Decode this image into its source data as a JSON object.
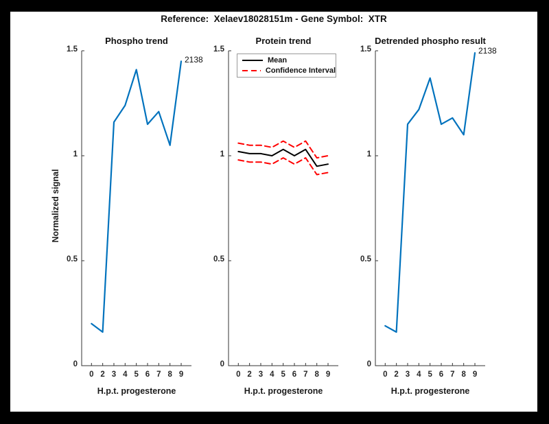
{
  "figure": {
    "title": "Reference:  Xelaev18028151m - Gene Symbol:  XTR"
  },
  "colors": {
    "line_blue": "#0072BD",
    "ci_red": "#FF0000",
    "mean_black": "#000000",
    "axis": "#333333"
  },
  "chart_data": [
    {
      "type": "line",
      "title": "Phospho trend",
      "xlabel": "H.p.t. progesterone",
      "ylabel": "Normalized signal",
      "categories": [
        "0",
        "2",
        "3",
        "4",
        "5",
        "6",
        "7",
        "8",
        "9"
      ],
      "ylim": [
        0,
        1.5
      ],
      "yticks": [
        "0",
        "0.5",
        "1",
        "1.5"
      ],
      "grid": false,
      "series": [
        {
          "name": "phospho-signal",
          "color": "#0072BD",
          "style": "solid",
          "values": [
            0.2,
            0.16,
            1.16,
            1.24,
            1.41,
            1.15,
            1.21,
            1.05,
            1.45
          ]
        }
      ],
      "annotation": {
        "text": "2138",
        "at_category": "9",
        "at_value": 1.45
      }
    },
    {
      "type": "line",
      "title": "Protein trend",
      "xlabel": "H.p.t. progesterone",
      "categories": [
        "0",
        "2",
        "3",
        "4",
        "5",
        "6",
        "7",
        "8",
        "9"
      ],
      "ylim": [
        0,
        1.5
      ],
      "yticks": [
        "0",
        "0.5",
        "1",
        "1.5"
      ],
      "grid": false,
      "series": [
        {
          "name": "mean",
          "color": "#000000",
          "style": "solid",
          "values": [
            1.02,
            1.01,
            1.01,
            1.0,
            1.03,
            1.0,
            1.03,
            0.95,
            0.96
          ]
        },
        {
          "name": "confidence-upper",
          "color": "#FF0000",
          "style": "dashed",
          "values": [
            1.06,
            1.05,
            1.05,
            1.04,
            1.07,
            1.04,
            1.07,
            0.99,
            1.0
          ]
        },
        {
          "name": "confidence-lower",
          "color": "#FF0000",
          "style": "dashed",
          "values": [
            0.98,
            0.97,
            0.97,
            0.96,
            0.99,
            0.96,
            0.99,
            0.91,
            0.92
          ]
        }
      ],
      "legend": {
        "position": "northwest",
        "entries": [
          {
            "label": "Mean",
            "color": "#000000",
            "style": "solid"
          },
          {
            "label": "Confidence Interval",
            "color": "#FF0000",
            "style": "dashed"
          }
        ]
      }
    },
    {
      "type": "line",
      "title": "Detrended phospho result",
      "xlabel": "H.p.t. progesterone",
      "categories": [
        "0",
        "2",
        "3",
        "4",
        "5",
        "6",
        "7",
        "8",
        "9"
      ],
      "ylim": [
        0,
        1.5
      ],
      "yticks": [
        "0",
        "0.5",
        "1",
        "1.5"
      ],
      "grid": false,
      "series": [
        {
          "name": "detrended-phospho",
          "color": "#0072BD",
          "style": "solid",
          "values": [
            0.19,
            0.16,
            1.15,
            1.22,
            1.37,
            1.15,
            1.18,
            1.1,
            1.49
          ]
        }
      ],
      "annotation": {
        "text": "2138",
        "at_category": "9",
        "at_value": 1.49
      }
    }
  ]
}
